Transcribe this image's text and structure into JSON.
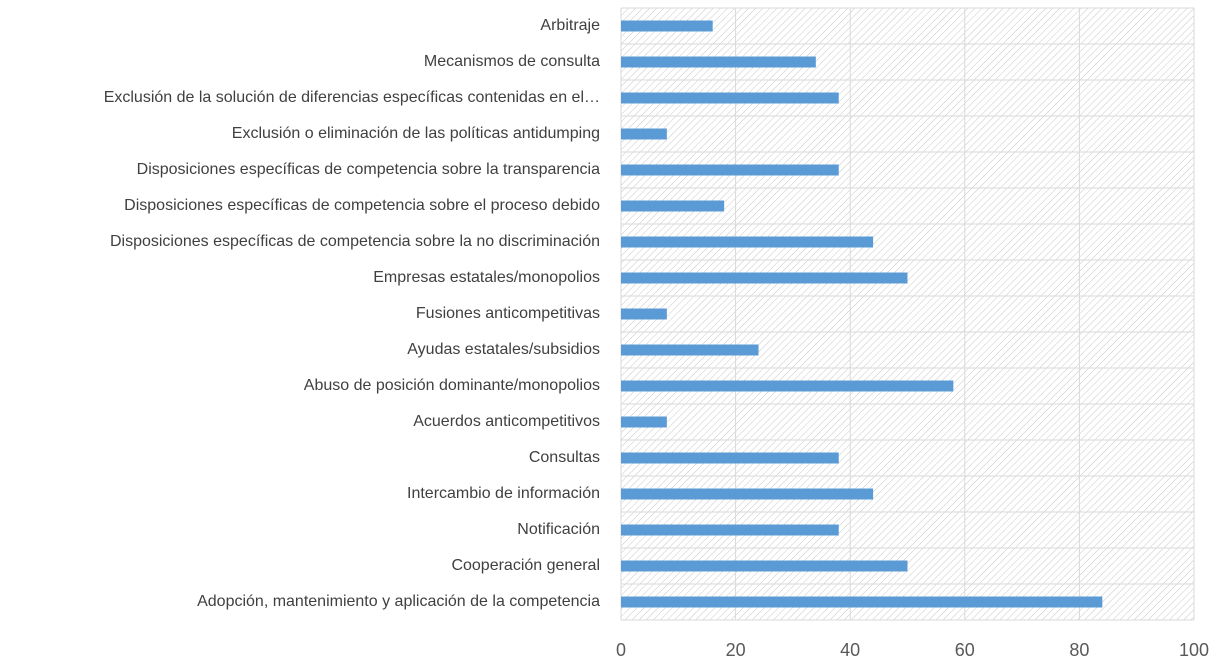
{
  "chart_data": {
    "type": "bar",
    "orientation": "horizontal",
    "categories": [
      "Arbitraje",
      "Mecanismos de consulta",
      "Exclusión de la solución de diferencias específicas contenidas en el…",
      "Exclusión o eliminación de las políticas antidumping",
      "Disposiciones específicas de competencia sobre la transparencia",
      "Disposiciones específicas de competencia sobre el proceso debido",
      "Disposiciones específicas de competencia sobre la no discriminación",
      "Empresas estatales/monopolios",
      "Fusiones anticompetitivas",
      "Ayudas estatales/subsidios",
      "Abuso de posición dominante/monopolios",
      "Acuerdos anticompetitivos",
      "Consultas",
      "Intercambio de información",
      "Notificación",
      "Cooperación general",
      "Adopción, mantenimiento y aplicación de la competencia"
    ],
    "values": [
      16,
      34,
      38,
      8,
      38,
      18,
      44,
      50,
      8,
      24,
      58,
      8,
      38,
      44,
      38,
      50,
      84
    ],
    "color": "#5b9bd5",
    "xlim": [
      0,
      100
    ],
    "xticks": [
      0,
      20,
      40,
      60,
      80,
      100
    ],
    "grid": true
  }
}
